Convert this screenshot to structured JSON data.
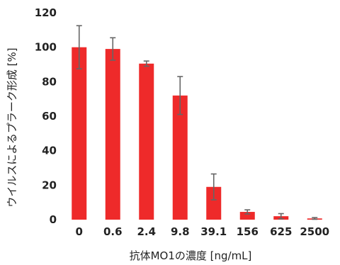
{
  "chart_data": {
    "type": "bar",
    "title": "",
    "xlabel": "抗体MO1の濃度 [ng/mL]",
    "ylabel": "ウイルスによるプラーク形成 [%]",
    "ylim": [
      0,
      120
    ],
    "yticks": [
      0,
      20,
      40,
      60,
      80,
      100,
      120
    ],
    "grid": false,
    "legend": "none",
    "categories": [
      "0",
      "0.6",
      "2.4",
      "9.8",
      "39.1",
      "156",
      "625",
      "2500"
    ],
    "values": [
      100,
      99,
      90.5,
      72,
      19,
      4.5,
      2,
      0.7
    ],
    "error": [
      12.5,
      6.5,
      1.5,
      11,
      7.5,
      1.2,
      1.5,
      0.5
    ],
    "bar_color": "#ee2a2a",
    "error_color": "#666666"
  }
}
